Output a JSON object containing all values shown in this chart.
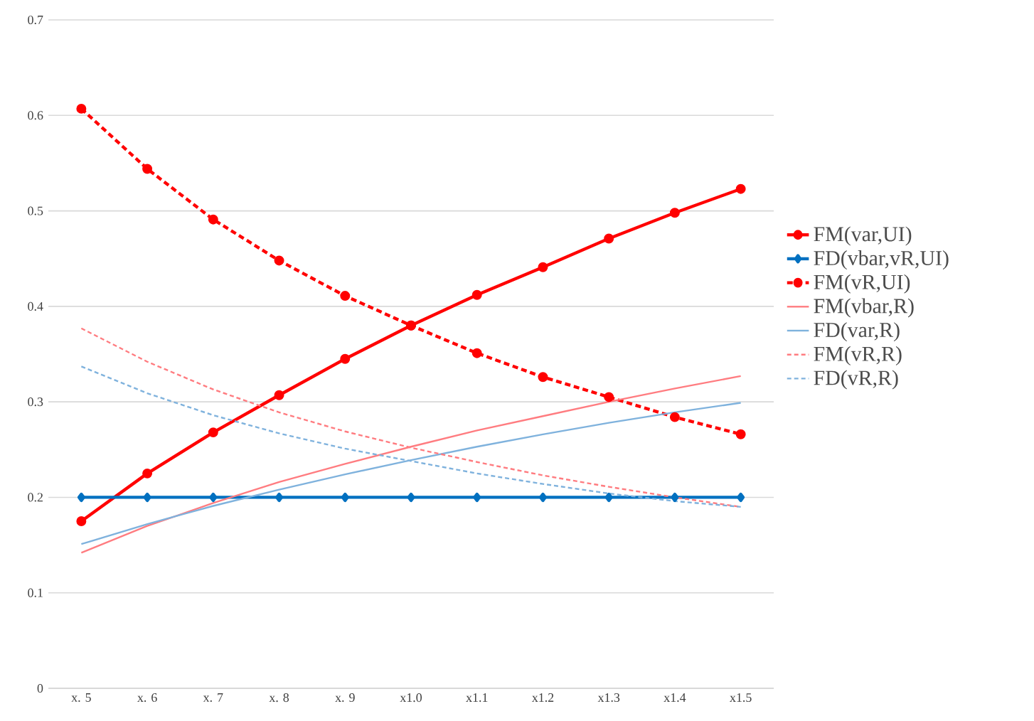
{
  "chart_data": {
    "type": "line",
    "categories": [
      "x. 5",
      "x. 6",
      "x. 7",
      "x. 8",
      "x. 9",
      "x1.0",
      "x1.1",
      "x1.2",
      "x1.3",
      "x1.4",
      "x1.5"
    ],
    "series": [
      {
        "name": "FM(var,UI)",
        "color": "#ff0000",
        "marker": "circle",
        "line_style": "solid",
        "values": [
          0.175,
          0.225,
          0.268,
          0.307,
          0.345,
          0.38,
          0.412,
          0.441,
          0.471,
          0.498,
          0.523
        ]
      },
      {
        "name": "FD(vbar,vR,UI)",
        "color": "#0070c0",
        "marker": "diamond",
        "line_style": "solid",
        "values": [
          0.2,
          0.2,
          0.2,
          0.2,
          0.2,
          0.2,
          0.2,
          0.2,
          0.2,
          0.2,
          0.2
        ]
      },
      {
        "name": "FM(vR,UI)",
        "color": "#ff0000",
        "marker": "circle",
        "line_style": "dashed",
        "values": [
          0.607,
          0.544,
          0.491,
          0.448,
          0.411,
          0.38,
          0.351,
          0.326,
          0.305,
          0.284,
          0.266
        ]
      },
      {
        "name": "FM(vbar,R)",
        "color": "#ff7c80",
        "marker": "none",
        "line_style": "solid",
        "values": [
          0.142,
          0.17,
          0.194,
          0.216,
          0.235,
          0.253,
          0.27,
          0.285,
          0.3,
          0.314,
          0.327
        ]
      },
      {
        "name": "FD(var,R)",
        "color": "#7fb2dd",
        "marker": "none",
        "line_style": "solid",
        "values": [
          0.151,
          0.172,
          0.191,
          0.208,
          0.224,
          0.239,
          0.253,
          0.266,
          0.278,
          0.289,
          0.299
        ]
      },
      {
        "name": "FM(vR,R)",
        "color": "#ff7c80",
        "marker": "none",
        "line_style": "dashed",
        "values": [
          0.377,
          0.342,
          0.313,
          0.289,
          0.269,
          0.252,
          0.237,
          0.223,
          0.211,
          0.2,
          0.19
        ]
      },
      {
        "name": "FD(vR,R)",
        "color": "#7fb2dd",
        "marker": "none",
        "line_style": "dashed",
        "values": [
          0.337,
          0.309,
          0.286,
          0.267,
          0.251,
          0.238,
          0.225,
          0.214,
          0.204,
          0.196,
          0.19
        ]
      }
    ],
    "ylim": [
      0,
      0.7
    ],
    "yticks": [
      0,
      0.1,
      0.2,
      0.3,
      0.4,
      0.5,
      0.6,
      0.7
    ],
    "grid": "y",
    "legend": "right"
  }
}
